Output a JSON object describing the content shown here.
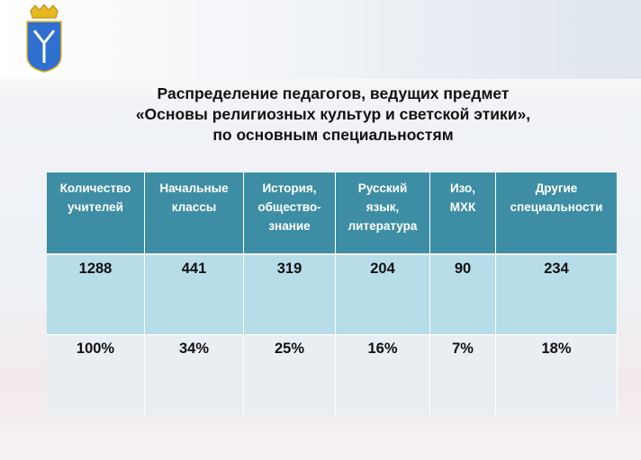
{
  "title": [
    "Распределение педагогов, ведущих предмет",
    "«Основы религиозных культур и светской этики»,",
    "по основным специальностям"
  ],
  "table": {
    "header": [
      [
        "Количество",
        "учителей"
      ],
      [
        "Начальные",
        "классы"
      ],
      [
        "История,",
        "общество-",
        "знание"
      ],
      [
        "Русский",
        "язык,",
        "литература"
      ],
      [
        "Изо,",
        "МХК"
      ],
      [
        "Другие",
        "специальности"
      ]
    ],
    "rows": [
      [
        "1288",
        "441",
        "319",
        "204",
        "90",
        "234"
      ],
      [
        "100%",
        "34%",
        "25%",
        "16%",
        "7%",
        "18%"
      ]
    ]
  }
}
